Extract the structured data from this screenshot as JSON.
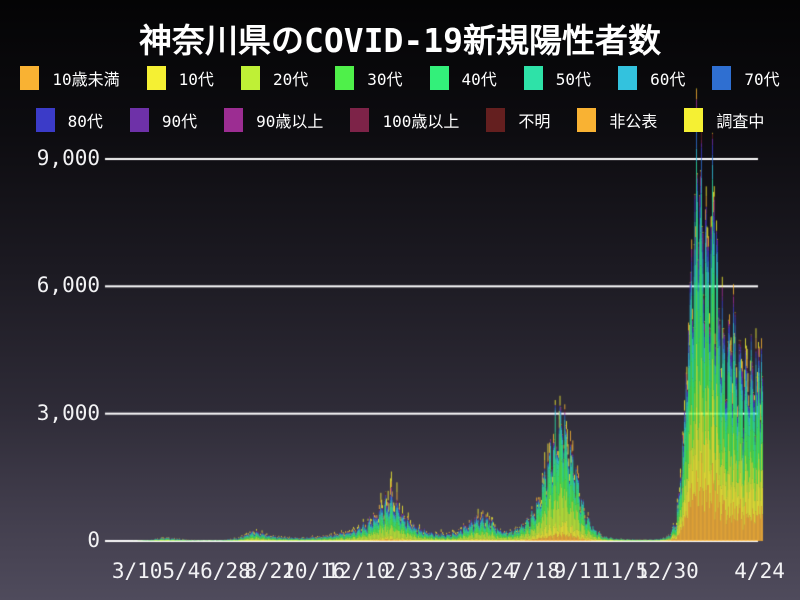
{
  "title": "神奈川県のCOVID-19新規陽性者数",
  "colors": {
    "background_top": "#040405",
    "background_bottom": "#4f4b5c",
    "gridline": "#ffffff",
    "text": "#ffffff"
  },
  "legend": {
    "rows": [
      [
        {
          "label": "10歳未満",
          "color": "#F9B233"
        },
        {
          "label": "10代",
          "color": "#F5F033"
        },
        {
          "label": "20代",
          "color": "#BFF036"
        },
        {
          "label": "30代",
          "color": "#4FF04A"
        },
        {
          "label": "40代",
          "color": "#33F07A"
        },
        {
          "label": "50代",
          "color": "#2EE2A8"
        },
        {
          "label": "60代",
          "color": "#33C2DE"
        },
        {
          "label": "70代",
          "color": "#2F6FD1"
        }
      ],
      [
        {
          "label": "80代",
          "color": "#3B3BC8"
        },
        {
          "label": "90代",
          "color": "#6E31A8"
        },
        {
          "label": "90歳以上",
          "color": "#9C2D92"
        },
        {
          "label": "100歳以上",
          "color": "#7D2348"
        },
        {
          "label": "不明",
          "color": "#641F1F"
        },
        {
          "label": "非公表",
          "color": "#F9B233"
        },
        {
          "label": "調査中",
          "color": "#F5F033"
        }
      ]
    ]
  },
  "chart_data": {
    "type": "area",
    "subtype": "stacked-daily-bars",
    "title": "神奈川県のCOVID-19新規陽性者数",
    "xlabel": "",
    "ylabel": "",
    "grid": true,
    "legend_position": "top",
    "y_ticks": [
      0,
      3000,
      6000,
      9000
    ],
    "ylim": [
      0,
      9300
    ],
    "x_tick_labels": [
      "3/10",
      "5/4",
      "6/28",
      "8/22",
      "10/16",
      "12/10",
      "2/3",
      "3/30",
      "5/24",
      "7/18",
      "9/11",
      "11/5",
      "12/30",
      "4/24"
    ],
    "x_tick_days": [
      0,
      55,
      110,
      165,
      220,
      275,
      330,
      385,
      440,
      495,
      550,
      605,
      660,
      775
    ],
    "day_range": [
      -40,
      778
    ],
    "series": [
      {
        "name": "10歳未満",
        "color": "#F9B233"
      },
      {
        "name": "10代",
        "color": "#F5F033"
      },
      {
        "name": "20代",
        "color": "#BFF036"
      },
      {
        "name": "30代",
        "color": "#4FF04A"
      },
      {
        "name": "40代",
        "color": "#33F07A"
      },
      {
        "name": "50代",
        "color": "#2EE2A8"
      },
      {
        "name": "60代",
        "color": "#33C2DE"
      },
      {
        "name": "70代",
        "color": "#2F6FD1"
      },
      {
        "name": "80代",
        "color": "#3B3BC8"
      },
      {
        "name": "90代",
        "color": "#6E31A8"
      },
      {
        "name": "90歳以上",
        "color": "#9C2D92"
      },
      {
        "name": "100歳以上",
        "color": "#7D2348"
      },
      {
        "name": "不明",
        "color": "#641F1F"
      },
      {
        "name": "非公表",
        "color": "#F9B233"
      },
      {
        "name": "調査中",
        "color": "#F5F033"
      }
    ],
    "total_envelope_points": [
      [
        -40,
        0
      ],
      [
        -25,
        1
      ],
      [
        -12,
        3
      ],
      [
        0,
        6
      ],
      [
        15,
        25
      ],
      [
        30,
        65
      ],
      [
        38,
        80
      ],
      [
        48,
        45
      ],
      [
        65,
        22
      ],
      [
        85,
        14
      ],
      [
        105,
        20
      ],
      [
        125,
        60
      ],
      [
        138,
        160
      ],
      [
        145,
        230
      ],
      [
        152,
        190
      ],
      [
        165,
        120
      ],
      [
        180,
        85
      ],
      [
        200,
        70
      ],
      [
        220,
        90
      ],
      [
        240,
        130
      ],
      [
        258,
        185
      ],
      [
        272,
        260
      ],
      [
        285,
        380
      ],
      [
        295,
        560
      ],
      [
        305,
        800
      ],
      [
        313,
        1000
      ],
      [
        321,
        880
      ],
      [
        330,
        600
      ],
      [
        342,
        380
      ],
      [
        355,
        250
      ],
      [
        368,
        175
      ],
      [
        382,
        150
      ],
      [
        395,
        185
      ],
      [
        408,
        330
      ],
      [
        418,
        480
      ],
      [
        428,
        545
      ],
      [
        436,
        470
      ],
      [
        448,
        300
      ],
      [
        458,
        205
      ],
      [
        468,
        215
      ],
      [
        478,
        330
      ],
      [
        488,
        520
      ],
      [
        498,
        820
      ],
      [
        508,
        1500
      ],
      [
        518,
        2250
      ],
      [
        528,
        2700
      ],
      [
        534,
        2550
      ],
      [
        542,
        1900
      ],
      [
        550,
        1150
      ],
      [
        558,
        620
      ],
      [
        566,
        330
      ],
      [
        575,
        165
      ],
      [
        585,
        80
      ],
      [
        598,
        45
      ],
      [
        612,
        32
      ],
      [
        628,
        28
      ],
      [
        642,
        34
      ],
      [
        654,
        55
      ],
      [
        663,
        130
      ],
      [
        670,
        420
      ],
      [
        676,
        1300
      ],
      [
        681,
        2600
      ],
      [
        686,
        4500
      ],
      [
        691,
        6800
      ],
      [
        695,
        8300
      ],
      [
        699,
        8600
      ],
      [
        703,
        8000
      ],
      [
        707,
        6700
      ],
      [
        711,
        6500
      ],
      [
        715,
        7600
      ],
      [
        719,
        6900
      ],
      [
        724,
        5400
      ],
      [
        729,
        4500
      ],
      [
        734,
        4400
      ],
      [
        739,
        5000
      ],
      [
        744,
        4800
      ],
      [
        749,
        4100
      ],
      [
        754,
        3700
      ],
      [
        759,
        3900
      ],
      [
        764,
        4200
      ],
      [
        769,
        3800
      ],
      [
        774,
        4000
      ],
      [
        778,
        3800
      ]
    ],
    "weekly_pattern": [
      1.04,
      1.06,
      1.05,
      1.02,
      0.96,
      0.78,
      0.7
    ],
    "max_daily_total": 9150,
    "share_profiles": {
      "early": [
        0.03,
        0.065,
        0.23,
        0.155,
        0.14,
        0.115,
        0.08,
        0.06,
        0.045,
        0.022,
        0.007,
        0.002,
        0.006,
        0.018,
        0.025
      ],
      "delta": [
        0.055,
        0.1,
        0.25,
        0.2,
        0.17,
        0.11,
        0.045,
        0.022,
        0.012,
        0.005,
        0.002,
        0.001,
        0.004,
        0.012,
        0.012
      ],
      "omicron": [
        0.165,
        0.15,
        0.13,
        0.15,
        0.155,
        0.09,
        0.05,
        0.038,
        0.028,
        0.014,
        0.004,
        0.001,
        0.002,
        0.012,
        0.011
      ]
    },
    "profile_schedule": [
      [
        -40,
        "early"
      ],
      [
        425,
        "early"
      ],
      [
        485,
        "delta"
      ],
      [
        620,
        "delta"
      ],
      [
        666,
        "omicron"
      ],
      [
        778,
        "omicron"
      ]
    ]
  }
}
